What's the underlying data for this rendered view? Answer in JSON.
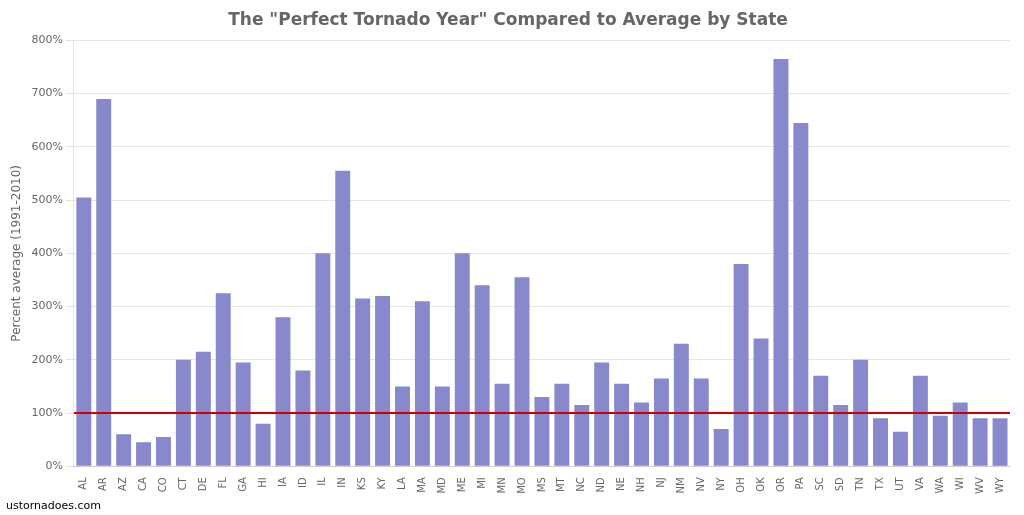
{
  "chart_data": {
    "type": "bar",
    "title": "The \"Perfect Tornado Year\" Compared to Average by State",
    "ylabel": "Percent average (1991-2010)",
    "watermark": "ustornadoes.com",
    "categories": [
      "AL",
      "AR",
      "AZ",
      "CA",
      "CO",
      "CT",
      "DE",
      "FL",
      "GA",
      "HI",
      "IA",
      "ID",
      "IL",
      "IN",
      "KS",
      "KY",
      "LA",
      "MA",
      "MD",
      "ME",
      "MI",
      "MN",
      "MO",
      "MS",
      "MT",
      "NC",
      "ND",
      "NE",
      "NH",
      "NJ",
      "NM",
      "NV",
      "NY",
      "OH",
      "OK",
      "OR",
      "PA",
      "SC",
      "SD",
      "TN",
      "TX",
      "UT",
      "VA",
      "WA",
      "WI",
      "WV",
      "WY"
    ],
    "values": [
      505,
      690,
      60,
      45,
      55,
      200,
      215,
      325,
      195,
      80,
      280,
      180,
      400,
      555,
      315,
      320,
      150,
      310,
      150,
      400,
      340,
      155,
      355,
      130,
      155,
      115,
      195,
      155,
      120,
      165,
      230,
      165,
      70,
      380,
      240,
      765,
      645,
      170,
      115,
      200,
      90,
      65,
      170,
      95,
      120,
      90,
      90
    ],
    "color": "#8888cc",
    "reference_line": 100,
    "reference_line_color": "#cc0000",
    "ylim": [
      0,
      800
    ],
    "yticks": [
      {
        "value": 0,
        "label": "0%"
      },
      {
        "value": 100,
        "label": "100%"
      },
      {
        "value": 200,
        "label": "200%"
      },
      {
        "value": 300,
        "label": "300%"
      },
      {
        "value": 400,
        "label": "400%"
      },
      {
        "value": 500,
        "label": "500%"
      },
      {
        "value": 600,
        "label": "600%"
      },
      {
        "value": 700,
        "label": "700%"
      },
      {
        "value": 800,
        "label": "800%"
      }
    ],
    "grid": "y"
  }
}
